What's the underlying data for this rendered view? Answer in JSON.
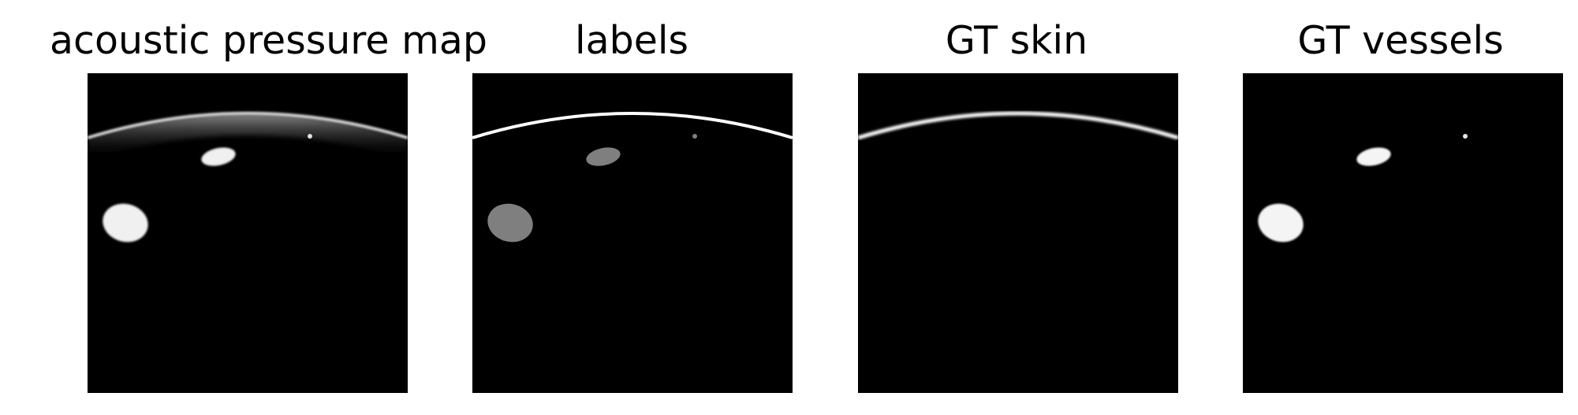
{
  "panels": [
    {
      "title": "acoustic pressure map"
    },
    {
      "title": "labels"
    },
    {
      "title": "GT skin"
    },
    {
      "title": "GT vessels"
    }
  ]
}
